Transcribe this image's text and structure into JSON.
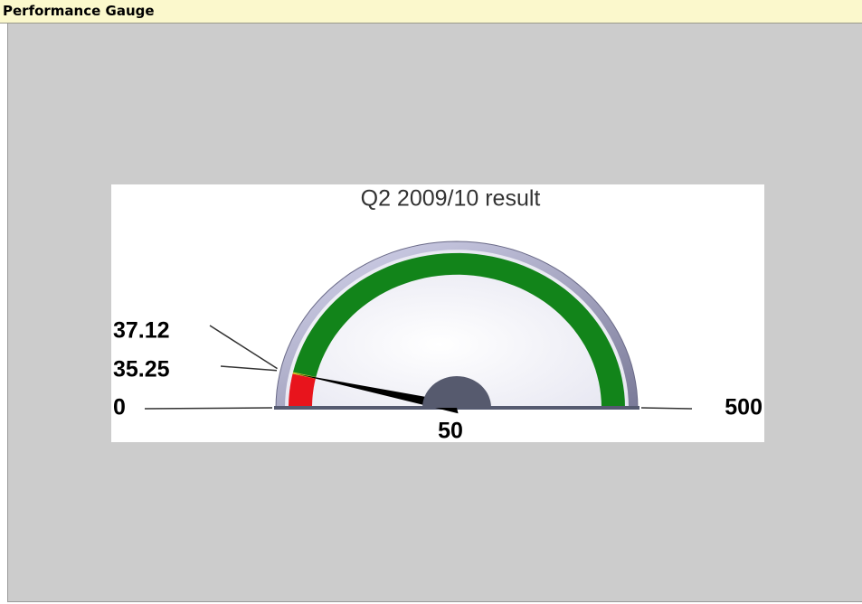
{
  "header": {
    "title": "Performance Gauge"
  },
  "chart_data": {
    "type": "gauge",
    "title": "Q2 2009/10 result",
    "min": 0,
    "max": 500,
    "bands": [
      {
        "from": 0,
        "to": 35.25,
        "color": "#e8141c"
      },
      {
        "from": 35.25,
        "to": 37.12,
        "color": "#c8c020"
      },
      {
        "from": 37.12,
        "to": 500,
        "color": "#12841a"
      }
    ],
    "ticks": [
      0,
      35.25,
      37.12,
      500
    ],
    "value": 36,
    "annotation": "50"
  }
}
